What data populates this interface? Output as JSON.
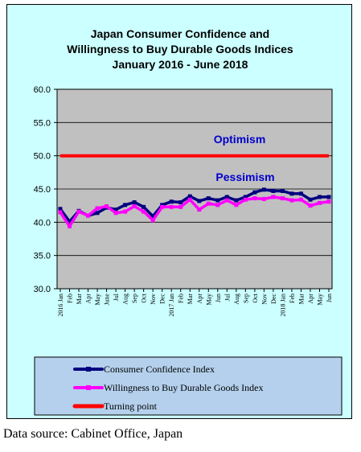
{
  "caption": "Data source: Cabinet Office, Japan",
  "colors": {
    "frame_bg": "#ccffff",
    "plot_bg": "#c0c0c0",
    "consumer_confidence": "#000080",
    "durable_goods": "#ff00ff",
    "turning_point": "#ff0000",
    "optimism_text": "#0000cc",
    "legend_bg": "#b4d0ec"
  },
  "chart_data": {
    "type": "line",
    "title_lines": [
      "Japan Consumer Confidence and",
      "Willingness to Buy Durable Goods Indices",
      "January 2016 - June 2018"
    ],
    "ylim": [
      30.0,
      60.0
    ],
    "yticks": [
      "30.0",
      "35.0",
      "40.0",
      "45.0",
      "50.0",
      "55.0",
      "60.0"
    ],
    "categories": [
      "2016 Jan",
      "Feb",
      "Mar",
      "Apr",
      "May",
      "June",
      "Jul",
      "Aug",
      "Sep",
      "Oct",
      "Nov",
      "Dec",
      "2017 Jan",
      "Feb",
      "Mar",
      "Apr",
      "May",
      "Jun",
      "Jul",
      "Aug",
      "Sep",
      "Oct",
      "Nov",
      "Dec",
      "2018 Jan",
      "Feb",
      "Mar",
      "Apr",
      "May",
      "Jun"
    ],
    "annotations": {
      "optimism": "Optimism",
      "pessimism": "Pessimism"
    },
    "grid": true,
    "legend_position": "bottom",
    "series": [
      {
        "name": "Consumer Confidence Index",
        "values": [
          42.0,
          40.1,
          41.7,
          41.0,
          41.4,
          42.2,
          41.9,
          42.6,
          43.0,
          42.3,
          40.9,
          42.6,
          43.1,
          43.0,
          43.9,
          43.2,
          43.6,
          43.3,
          43.8,
          43.3,
          43.8,
          44.5,
          44.9,
          44.7,
          44.7,
          44.3,
          44.3,
          43.4,
          43.8,
          43.8
        ]
      },
      {
        "name": "Willingness to Buy Durable Goods Index",
        "values": [
          41.5,
          39.4,
          41.6,
          41.0,
          42.1,
          42.4,
          41.4,
          41.6,
          42.4,
          41.6,
          40.3,
          42.3,
          42.3,
          42.3,
          43.4,
          41.9,
          42.8,
          42.6,
          43.3,
          42.6,
          43.4,
          43.6,
          43.5,
          43.8,
          43.6,
          43.3,
          43.4,
          42.5,
          42.9,
          43.1
        ]
      },
      {
        "name": "Turning point",
        "values": [
          50.0,
          50.0,
          50.0,
          50.0,
          50.0,
          50.0,
          50.0,
          50.0,
          50.0,
          50.0,
          50.0,
          50.0,
          50.0,
          50.0,
          50.0,
          50.0,
          50.0,
          50.0,
          50.0,
          50.0,
          50.0,
          50.0,
          50.0,
          50.0,
          50.0,
          50.0,
          50.0,
          50.0,
          50.0,
          50.0
        ]
      }
    ]
  }
}
